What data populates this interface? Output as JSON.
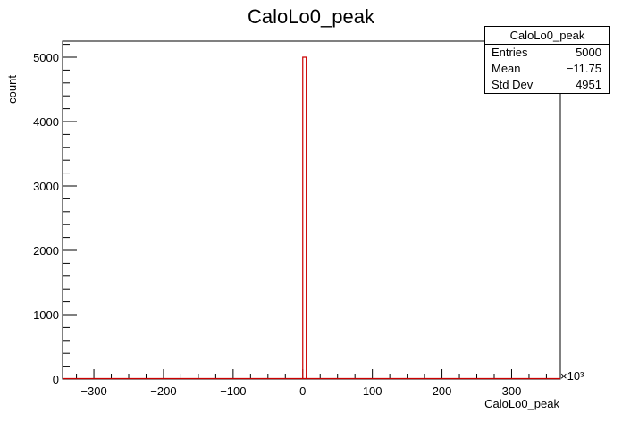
{
  "chart_data": {
    "type": "bar",
    "title": "CaloLo0_peak",
    "xlabel": "CaloLo0_peak",
    "ylabel": "count",
    "x_multiplier": "×10³",
    "xlim": [
      -345,
      370
    ],
    "ylim": [
      0,
      5250
    ],
    "x_ticks": [
      -300,
      -200,
      -100,
      0,
      100,
      200,
      300
    ],
    "x_tick_labels": [
      "−300",
      "−200",
      "−100",
      "0",
      "100",
      "200",
      "300"
    ],
    "y_ticks": [
      0,
      1000,
      2000,
      3000,
      4000,
      5000
    ],
    "y_tick_labels": [
      "0",
      "1000",
      "2000",
      "3000",
      "4000",
      "5000"
    ],
    "bins": [
      {
        "x0": 0,
        "x1": 5,
        "value": 5000
      }
    ],
    "grid": false,
    "line_color": "#cc0000",
    "stats": {
      "title": "CaloLo0_peak",
      "rows": [
        {
          "label": "Entries",
          "value": "5000"
        },
        {
          "label": "Mean",
          "value": "−11.75"
        },
        {
          "label": "Std Dev",
          "value": "4951"
        }
      ]
    }
  }
}
